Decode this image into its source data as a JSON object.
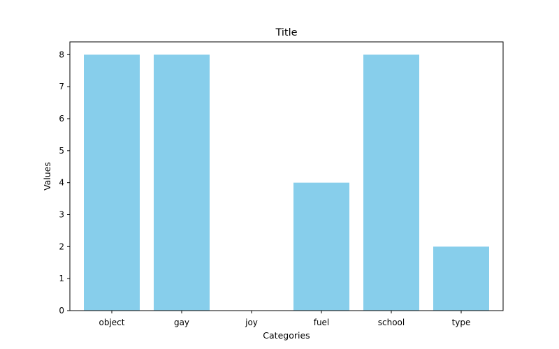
{
  "chart_data": {
    "type": "bar",
    "title": "Title",
    "xlabel": "Categories",
    "ylabel": "Values",
    "categories": [
      "object",
      "gay",
      "joy",
      "fuel",
      "school",
      "type"
    ],
    "values": [
      8,
      8,
      0,
      4,
      8,
      2
    ],
    "ylim": [
      0,
      8.4
    ],
    "yticks": [
      0,
      1,
      2,
      3,
      4,
      5,
      6,
      7,
      8
    ],
    "bar_color": "#87ceeb",
    "grid": false,
    "legend": "none"
  }
}
